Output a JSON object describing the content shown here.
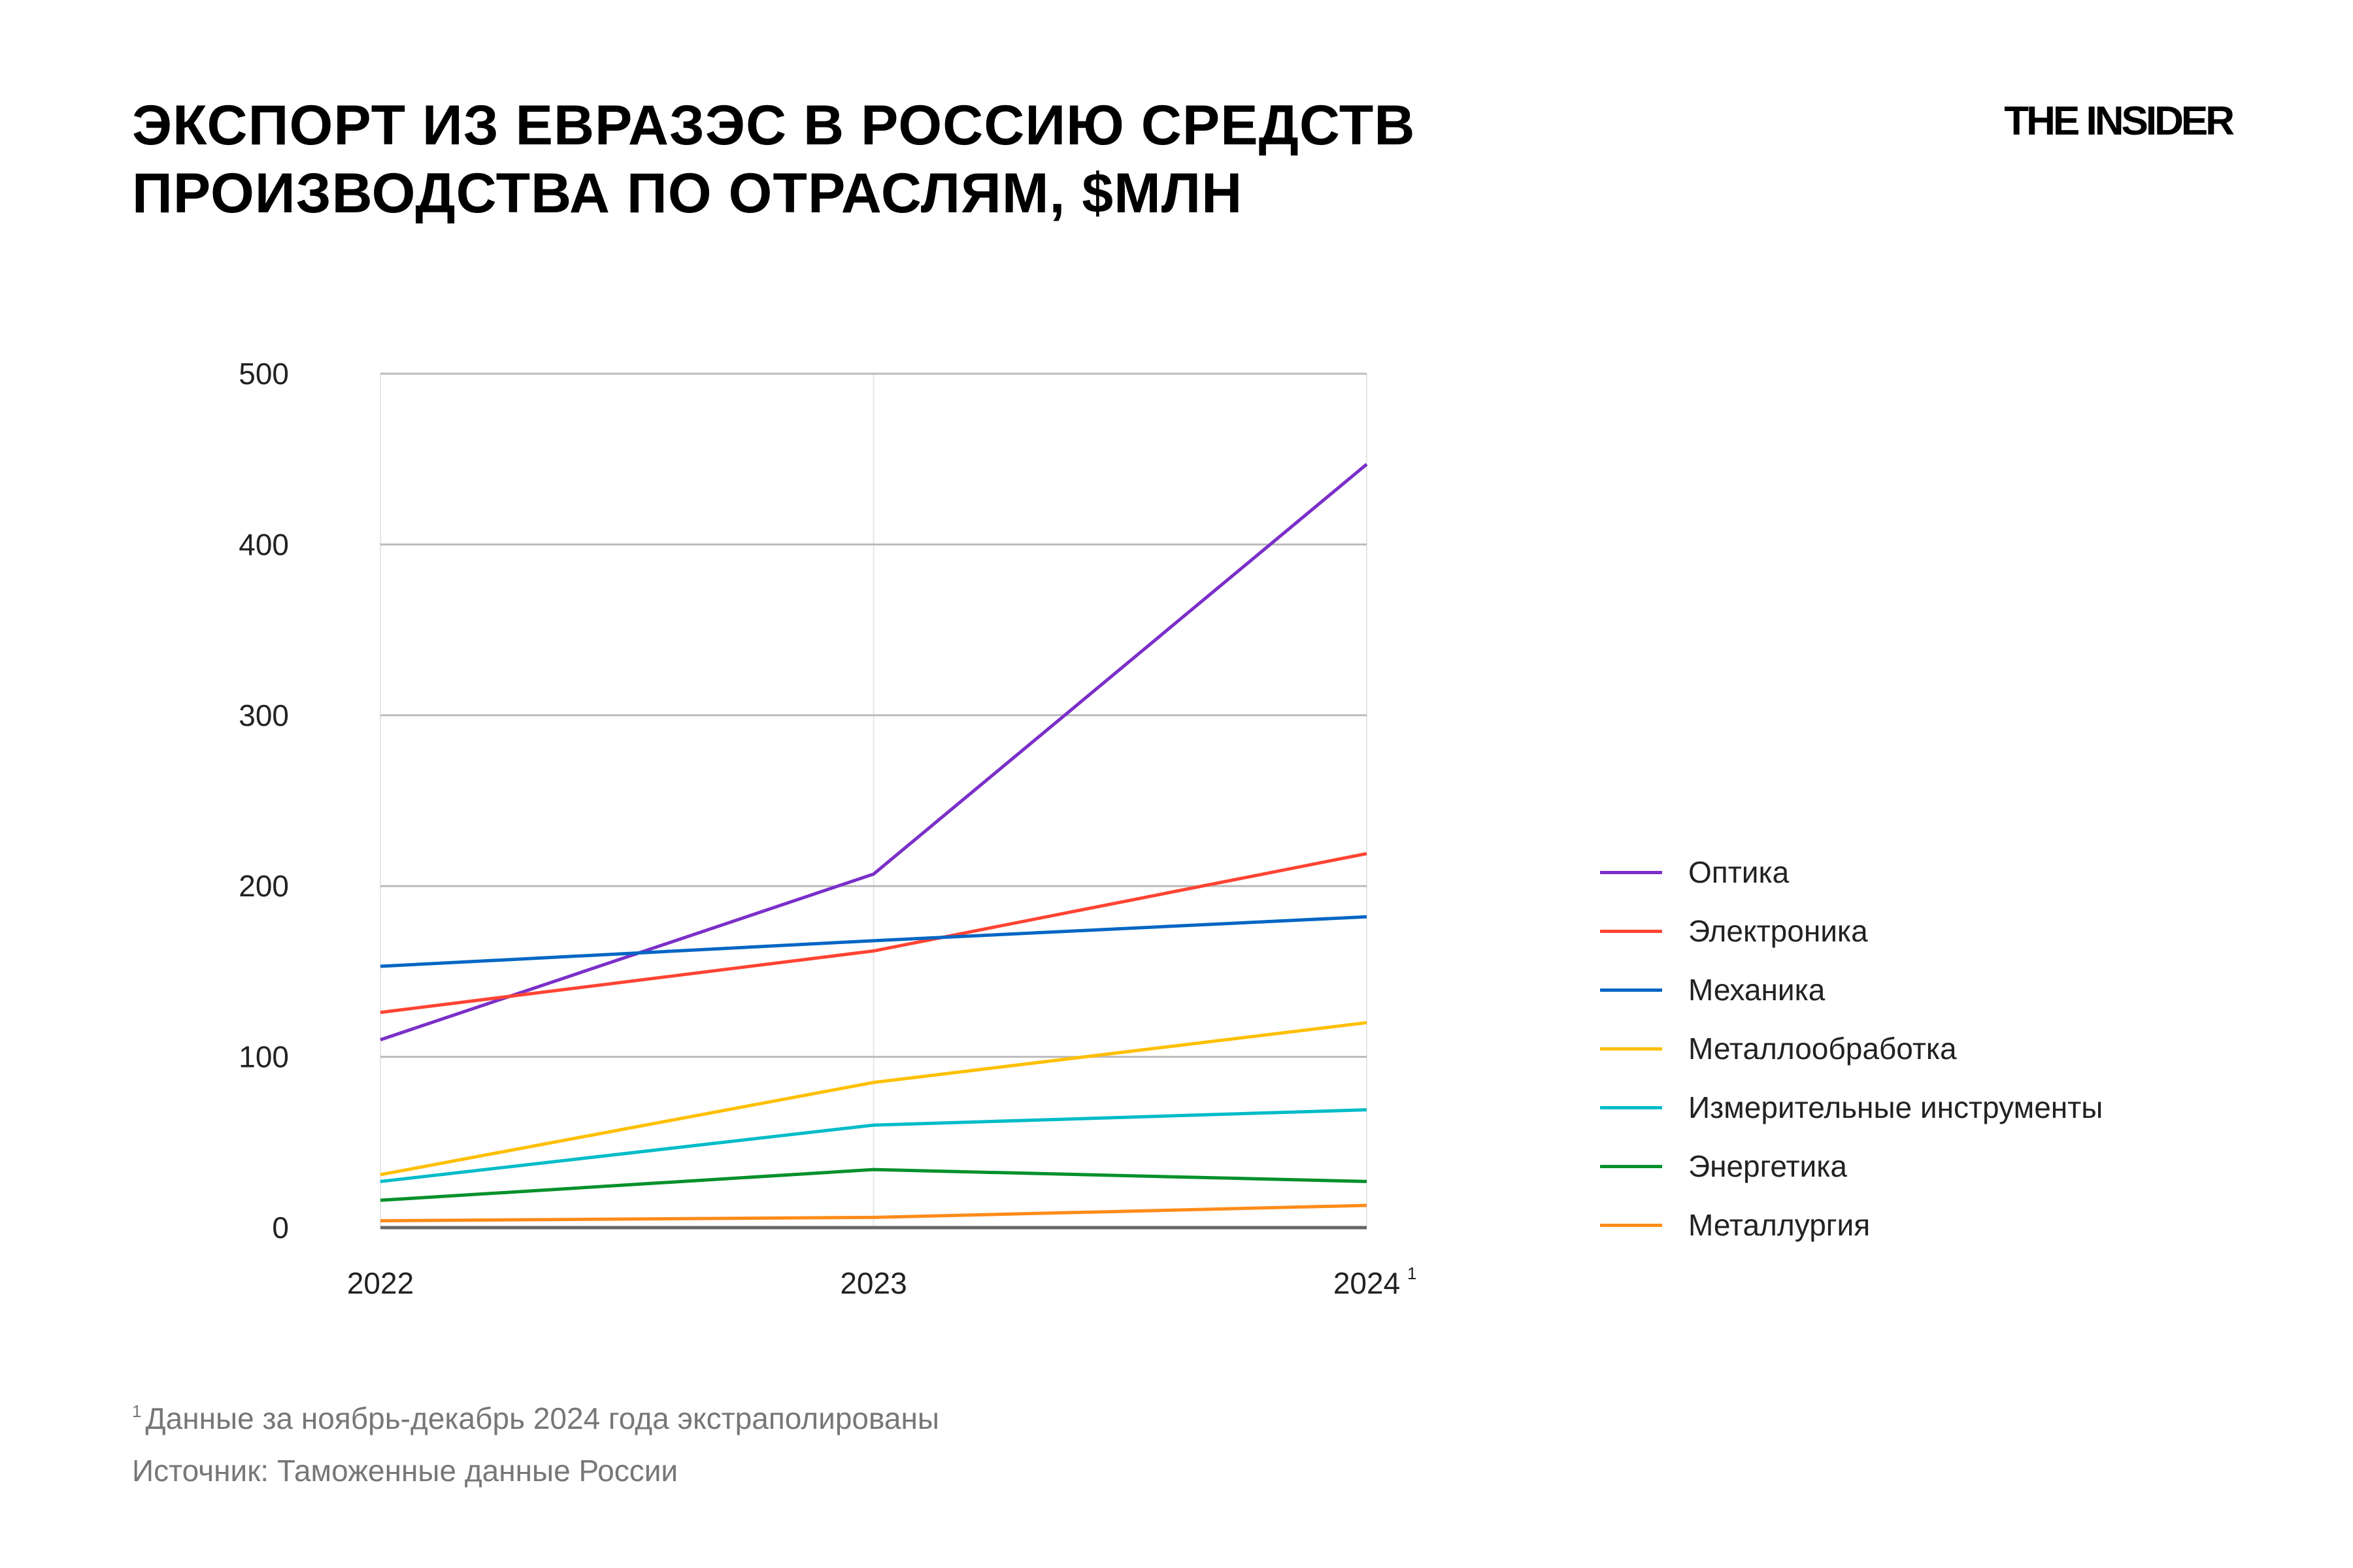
{
  "title_lines": [
    "ЭКСПОРТ ИЗ ЕВРАЗЭС В РОССИЮ СРЕДСТВ",
    "ПРОИЗВОДСТВА ПО ОТРАСЛЯМ, $МЛН"
  ],
  "logo": "THE INSIDER",
  "footnote_mark": "1",
  "footnote": "Данные за ноябрь-декабрь 2024 года экстраполированы",
  "source": "Источник: Таможенные данные России",
  "chart_data": {
    "type": "line",
    "categories": [
      "2022",
      "2023",
      "2024"
    ],
    "category_superscripts": [
      "",
      "",
      "1"
    ],
    "ylim": [
      0,
      500
    ],
    "yticks": [
      0,
      100,
      200,
      300,
      400,
      500
    ],
    "grid": true,
    "legend_position": "right",
    "series": [
      {
        "name": "Оптика",
        "color": "#7b2fc9",
        "values": [
          110,
          207,
          447
        ]
      },
      {
        "name": "Электроника",
        "color": "#ff4433",
        "values": [
          126,
          162,
          219
        ]
      },
      {
        "name": "Механика",
        "color": "#0066c4",
        "values": [
          153,
          168,
          182
        ]
      },
      {
        "name": "Металлообработка",
        "color": "#ffbf00",
        "values": [
          31,
          85,
          120
        ]
      },
      {
        "name": "Измерительные инструменты",
        "color": "#00bcc8",
        "values": [
          27,
          60,
          69
        ]
      },
      {
        "name": "Энергетика",
        "color": "#00902a",
        "values": [
          16,
          34,
          27
        ]
      },
      {
        "name": "Металлургия",
        "color": "#ff8c1a",
        "values": [
          4,
          6,
          13
        ]
      }
    ]
  }
}
